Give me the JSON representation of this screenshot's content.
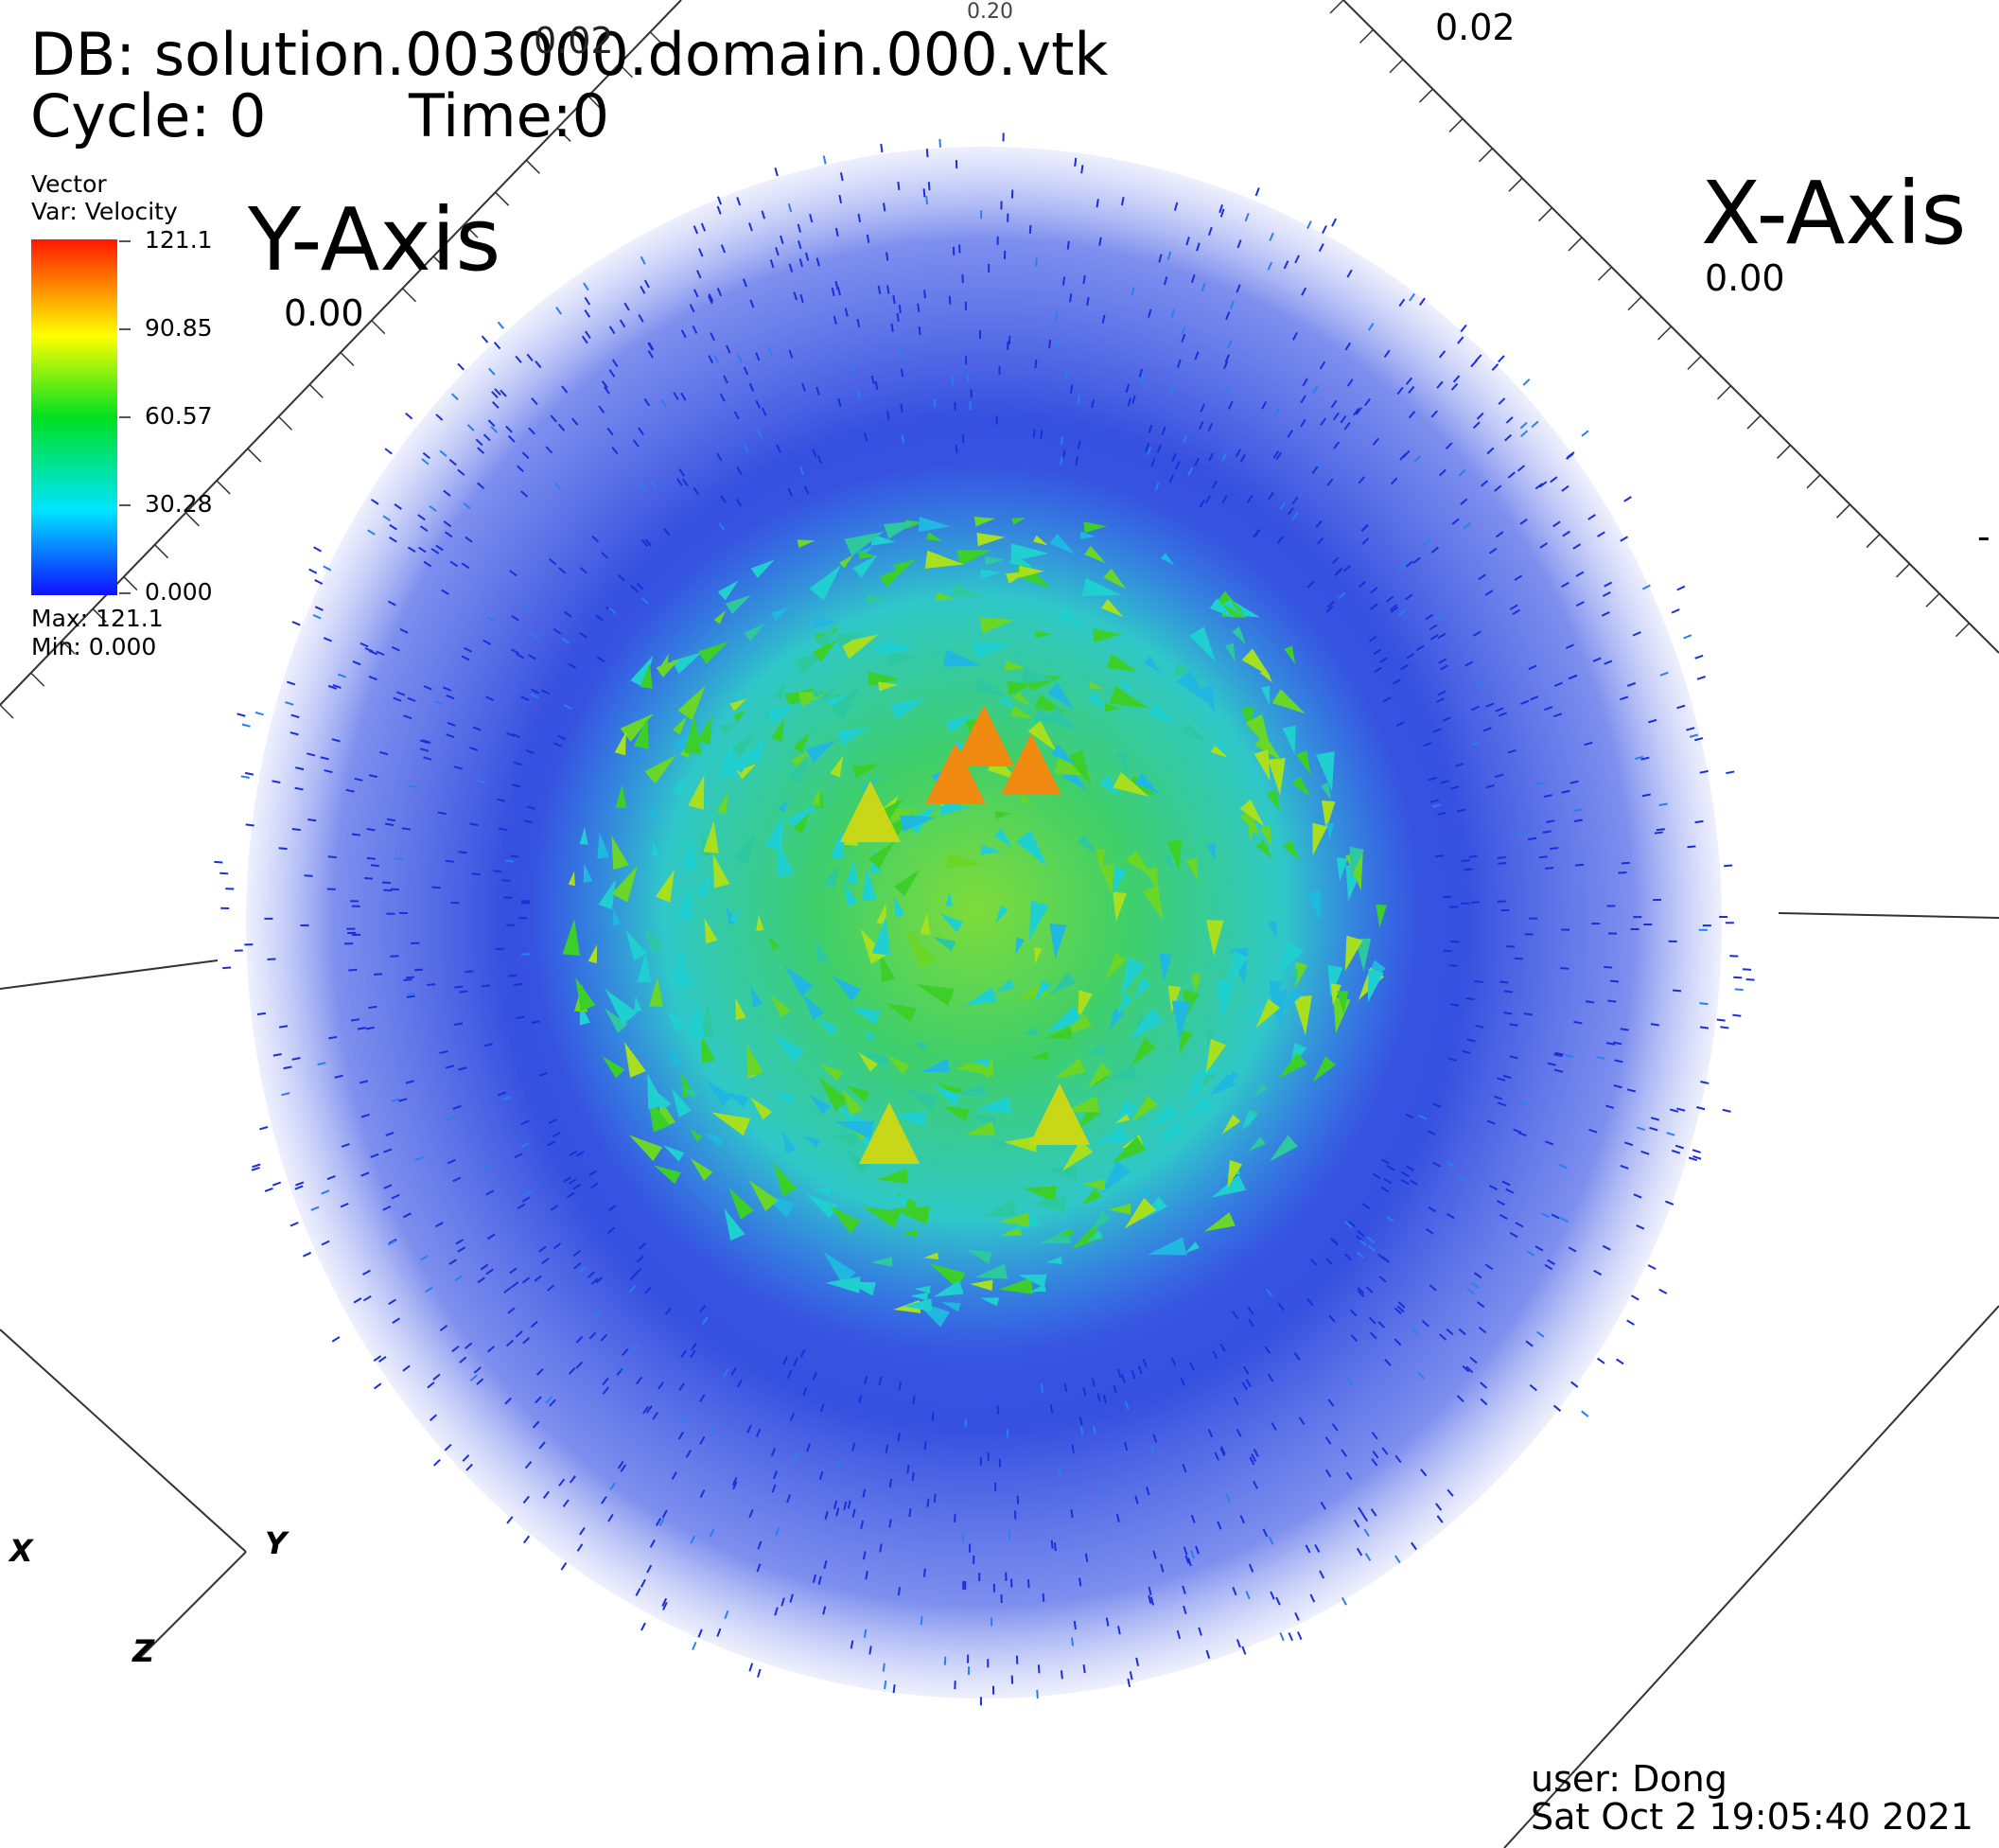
{
  "header": {
    "db_line": "DB: solution.003000.domain.000.vtk",
    "cycle_label": "Cycle: 0",
    "time_label": "Time:0"
  },
  "legend": {
    "type_label": "Vector",
    "var_label": "Var: Velocity",
    "ticks": [
      "121.1",
      "90.85",
      "60.57",
      "30.28",
      "0.000"
    ],
    "max_label": "Max:  121.1",
    "min_label": "Min:  0.000",
    "colors": [
      "#ff1800",
      "#ffff00",
      "#00e020",
      "#00e5ff",
      "#1010ff"
    ]
  },
  "axes": {
    "y_title": "Y-Axis",
    "x_title": "X-Axis",
    "y_tick": "0.00",
    "x_tick": "0.00",
    "top_tick_left": "0.02",
    "top_tick_right": "0.02",
    "top_tick_small": "0.20",
    "overlap_tick": "0.02",
    "right_dash": "-"
  },
  "triad": {
    "x": "X",
    "y": "Y",
    "z": "Z"
  },
  "footer": {
    "user_label": "user: Dong",
    "date_label": "Sat Oct  2 19:05:40 2021"
  },
  "viz_colors": {
    "outer": "#1a2fd8",
    "mid": "#2a7ff0",
    "cyan": "#20d0d0",
    "green": "#3ccf2a",
    "orange": "#f08a10"
  }
}
